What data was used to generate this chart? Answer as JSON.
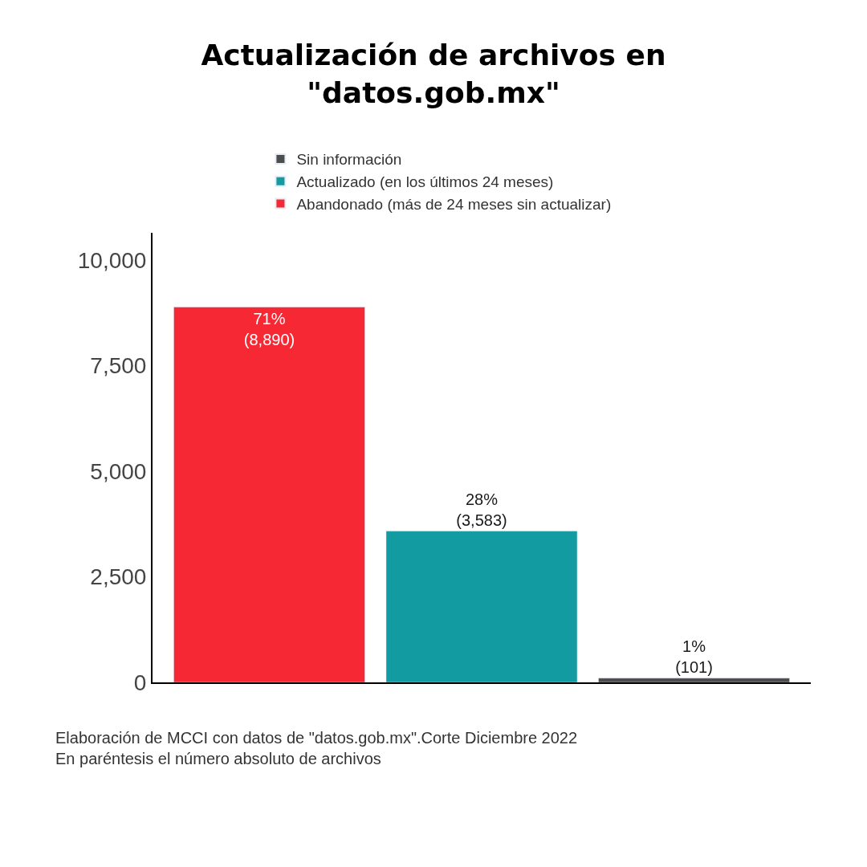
{
  "chart_data": {
    "type": "bar",
    "title": "Actualización de archivos en\n\"datos.gob.mx\"",
    "categories": [
      null,
      null,
      null
    ],
    "series": [
      {
        "name": "Sin información",
        "color": "#4d4d4d",
        "values": [
          null,
          null,
          101
        ],
        "value_labels": [
          null,
          null,
          "1%\n(101)"
        ]
      },
      {
        "name": "Actualizado (en los últimos 24 meses)",
        "color": "#129ba0",
        "values": [
          null,
          3583,
          null
        ],
        "value_labels": [
          null,
          "28%\n(3,583)",
          null
        ]
      },
      {
        "name": "Abandonado (más de 24 meses sin actualizar)",
        "color": "#f62833",
        "values": [
          8890,
          null,
          null
        ],
        "value_labels": [
          "71%\n(8,890)",
          null,
          null
        ]
      }
    ],
    "ylim": [
      0,
      10650
    ],
    "yticks": [
      0,
      {
        "value": 2500,
        "label": "2,500"
      },
      {
        "value": 5000,
        "label": "5,000"
      },
      {
        "value": 7500,
        "label": "7,500"
      },
      {
        "value": 10000,
        "label": "10,000"
      }
    ],
    "tick_labels": "y",
    "legend": "top",
    "annotations": [
      "Elaboración de MCCI con datos de \"datos.gob.mx\".Corte Diciembre 2022\nEn paréntesis el número absoluto de archivos"
    ]
  }
}
